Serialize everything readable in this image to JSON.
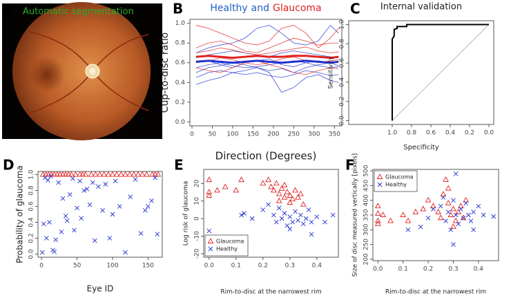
{
  "panel_labels": [
    "A",
    "B",
    "C",
    "D",
    "E",
    "F"
  ],
  "image_panel": {
    "caption": "Automatic segmentation"
  },
  "chart_data": [
    {
      "type": "line",
      "title_parts": [
        {
          "text": "Healthy",
          "color": "#1f5fc4"
        },
        {
          "text": "and",
          "color": "#1f5fc4"
        },
        {
          "text": "Glaucoma",
          "color": "#e02020"
        }
      ],
      "xlabel": "Direction (Degrees)",
      "ylabel": "Cup-to-disc ratio",
      "xlim": [
        -5,
        368
      ],
      "ylim": [
        -0.04,
        1.04
      ],
      "xticks": [
        0,
        50,
        100,
        150,
        200,
        250,
        300,
        350
      ],
      "yticks": [
        {
          "value": 0,
          "label": "0.0"
        },
        0.2,
        0.4,
        0.6,
        0.8,
        {
          "value": 1,
          "label": "1.0"
        }
      ],
      "x": [
        10,
        40,
        70,
        100,
        130,
        160,
        190,
        220,
        250,
        280,
        310,
        340,
        360
      ],
      "series": [
        {
          "color": "#2030d0",
          "values": [
            0.55,
            0.58,
            0.6,
            0.57,
            0.55,
            0.56,
            0.58,
            0.6,
            0.62,
            0.6,
            0.57,
            0.55,
            0.56
          ]
        },
        {
          "color": "#2030d0",
          "values": [
            0.45,
            0.5,
            0.52,
            0.5,
            0.48,
            0.5,
            0.47,
            0.45,
            0.48,
            0.52,
            0.5,
            0.47,
            0.48
          ]
        },
        {
          "color": "#2030d0",
          "values": [
            0.65,
            0.68,
            0.7,
            0.72,
            0.7,
            0.68,
            0.66,
            0.7,
            0.72,
            0.7,
            0.68,
            0.66,
            0.65
          ]
        },
        {
          "color": "#2030d0",
          "values": [
            0.38,
            0.42,
            0.45,
            0.5,
            0.52,
            0.55,
            0.5,
            0.3,
            0.35,
            0.45,
            0.48,
            0.42,
            0.4
          ]
        },
        {
          "color": "#2030d0",
          "values": [
            0.7,
            0.75,
            0.78,
            0.8,
            0.85,
            0.95,
            0.98,
            0.9,
            0.8,
            0.78,
            0.82,
            0.98,
            0.9
          ]
        },
        {
          "color": "#2030d0",
          "values": [
            0.6,
            0.62,
            0.58,
            0.55,
            0.6,
            0.62,
            0.64,
            0.58,
            0.56,
            0.6,
            0.62,
            0.6,
            0.61
          ]
        },
        {
          "color": "#2030d0",
          "values": [
            0.5,
            0.55,
            0.57,
            0.6,
            0.58,
            0.55,
            0.52,
            0.54,
            0.5,
            0.55,
            0.58,
            0.6,
            0.57
          ]
        },
        {
          "color": "#e02020",
          "values": [
            0.7,
            0.72,
            0.75,
            0.73,
            0.7,
            0.68,
            0.7,
            0.72,
            0.74,
            0.76,
            0.72,
            0.7,
            0.71
          ]
        },
        {
          "color": "#e02020",
          "values": [
            0.98,
            0.95,
            0.9,
            0.85,
            0.8,
            0.78,
            0.82,
            0.95,
            0.98,
            0.9,
            0.75,
            0.85,
            0.95
          ]
        },
        {
          "color": "#e02020",
          "values": [
            0.6,
            0.62,
            0.65,
            0.63,
            0.6,
            0.58,
            0.6,
            0.64,
            0.66,
            0.62,
            0.6,
            0.62,
            0.63
          ]
        },
        {
          "color": "#e02020",
          "values": [
            0.75,
            0.8,
            0.82,
            0.78,
            0.72,
            0.7,
            0.75,
            0.8,
            0.85,
            0.82,
            0.78,
            0.8,
            0.8
          ]
        },
        {
          "color": "#e02020",
          "values": [
            0.55,
            0.52,
            0.5,
            0.55,
            0.6,
            0.62,
            0.58,
            0.55,
            0.5,
            0.48,
            0.52,
            0.55,
            0.54
          ]
        },
        {
          "color": "#e02020",
          "line_width": 3,
          "values": [
            0.66,
            0.67,
            0.66,
            0.65,
            0.66,
            0.67,
            0.66,
            0.66,
            0.67,
            0.67,
            0.66,
            0.65,
            0.66
          ]
        },
        {
          "color": "#2030d0",
          "line_width": 3,
          "values": [
            0.61,
            0.62,
            0.61,
            0.6,
            0.61,
            0.62,
            0.61,
            0.6,
            0.61,
            0.62,
            0.61,
            0.6,
            0.61
          ]
        }
      ]
    },
    {
      "type": "line",
      "title": "Internal validation",
      "xlabel": "Specificity",
      "ylabel": "Sensitivity",
      "xlim": [
        1.45,
        -0.05
      ],
      "ylim": [
        -0.04,
        1.04
      ],
      "reference_line": true,
      "xticks": [
        {
          "value": 1,
          "label": "1.0"
        },
        0.8,
        0.6,
        0.4,
        0.2,
        {
          "value": 0,
          "label": "0.0"
        }
      ],
      "yticks": [
        {
          "value": 0,
          "label": "0.0"
        },
        0.2,
        0.4,
        0.6,
        0.8,
        {
          "value": 1,
          "label": "1.0"
        }
      ],
      "x": [
        1,
        1,
        0.98,
        0.98,
        0.95,
        0.95,
        0.85,
        0.85,
        0
      ],
      "series": [
        {
          "color": "#000000",
          "line_width": 2,
          "values": [
            0,
            0.85,
            0.88,
            0.95,
            0.96,
            0.98,
            0.98,
            1,
            1
          ]
        }
      ]
    },
    {
      "type": "scatter",
      "xlabel": "Eye ID",
      "ylabel": "Probability of glaucoma",
      "xlim": [
        -5,
        170
      ],
      "ylim": [
        -0.04,
        1.04
      ],
      "xticks": [
        0,
        50,
        100,
        150
      ],
      "yticks": [
        {
          "value": 0,
          "label": "0.0"
        },
        0.2,
        0.4,
        0.6,
        0.8,
        {
          "value": 1,
          "label": "1.0"
        }
      ],
      "series": [
        {
          "marker": "triangle",
          "color": "#e02020",
          "x": [
            2,
            6,
            10,
            14,
            18,
            22,
            26,
            30,
            34,
            38,
            42,
            48,
            54,
            58,
            62,
            70,
            76,
            82,
            88,
            94,
            100,
            106,
            112,
            118,
            124,
            130,
            136,
            142,
            148,
            156,
            160,
            164
          ],
          "values": [
            1,
            1,
            1,
            1,
            1,
            1,
            1,
            1,
            1,
            1,
            1,
            1,
            1,
            1,
            1,
            1,
            1,
            1,
            1,
            1,
            1,
            1,
            1,
            1,
            1,
            1,
            1,
            1,
            1,
            1,
            1,
            1
          ]
        },
        {
          "marker": "cross",
          "color": "#2030d0",
          "x": [
            1,
            3,
            5,
            7,
            9,
            11,
            13,
            16,
            18,
            20,
            24,
            28,
            30,
            34,
            36,
            40,
            44,
            46,
            50,
            54,
            56,
            60,
            64,
            68,
            72,
            75,
            80,
            86,
            90,
            96,
            100,
            104,
            110,
            118,
            125,
            132,
            140,
            146,
            150,
            155,
            160,
            163
          ],
          "values": [
            0.02,
            0.38,
            0.96,
            0.2,
            0.93,
            0.4,
            0.98,
            0.05,
            0.03,
            0.18,
            0.9,
            0.28,
            0.7,
            0.48,
            0.42,
            0.75,
            0.95,
            0.3,
            0.58,
            0.92,
            0.45,
            0.8,
            0.82,
            0.62,
            0.9,
            0.17,
            0.85,
            0.55,
            0.88,
            0.2,
            0.5,
            0.92,
            0.6,
            0.02,
            0.72,
            0.94,
            0.26,
            0.55,
            0.6,
            0.67,
            0.96,
            0.25
          ]
        }
      ]
    },
    {
      "type": "scatter",
      "xlabel": "Rim-to-disc at the narrowest rim",
      "ylabel": "Log risk of glaucoma",
      "xlim": [
        -0.02,
        0.48
      ],
      "ylim": [
        -22,
        28
      ],
      "legend": "bottom-left",
      "xticks": [
        {
          "value": 0,
          "label": "0.0"
        },
        0.1,
        0.2,
        0.3,
        0.4
      ],
      "yticks": [
        -20,
        -10,
        0,
        10,
        20
      ],
      "series": [
        {
          "name": "Glaucoma",
          "marker": "triangle",
          "color": "#e02020",
          "x": [
            0,
            0,
            0,
            0.03,
            0.06,
            0.1,
            0.12,
            0.2,
            0.22,
            0.23,
            0.24,
            0.25,
            0.26,
            0.27,
            0.28,
            0.29,
            0.3,
            0.31,
            0.32,
            0.33,
            0.35,
            0.34,
            0.28,
            0.3,
            0.26
          ],
          "values": [
            22,
            15,
            13,
            16,
            18,
            16,
            22,
            20,
            22,
            18,
            16,
            20,
            14,
            17,
            12,
            15,
            13,
            11,
            16,
            12,
            8,
            14,
            19,
            9,
            10
          ]
        },
        {
          "name": "Healthy",
          "marker": "cross",
          "color": "#2030d0",
          "x": [
            0.13,
            0.16,
            0.2,
            0.22,
            0.24,
            0.25,
            0.27,
            0.28,
            0.29,
            0.3,
            0.31,
            0.32,
            0.33,
            0.34,
            0.35,
            0.36,
            0.37,
            0.38,
            0.4,
            0.43,
            0.46,
            0.3,
            0.26,
            0,
            0.12,
            0.38
          ],
          "values": [
            3,
            0,
            5,
            8,
            2,
            -2,
            0,
            3,
            -4,
            1,
            -2,
            4,
            -1,
            2,
            -3,
            0,
            5,
            -2,
            1,
            -2,
            2,
            -6,
            6,
            -7,
            2,
            -9
          ]
        }
      ]
    },
    {
      "type": "scatter",
      "xlabel": "Rim-to-disc at the narrowest rim",
      "ylabel": "Size of disc measured vertically [pixels]",
      "xlim": [
        -0.02,
        0.48
      ],
      "ylim": [
        195,
        505
      ],
      "legend": "top-left",
      "xticks": [
        {
          "value": 0,
          "label": "0.0"
        },
        0.1,
        0.2,
        0.3,
        0.4
      ],
      "yticks": [
        200,
        250,
        300,
        350,
        400,
        450,
        500
      ],
      "series": [
        {
          "name": "Glaucoma",
          "marker": "triangle",
          "color": "#e02020",
          "x": [
            0,
            0,
            0,
            0,
            0.02,
            0.05,
            0.1,
            0.12,
            0.15,
            0.18,
            0.2,
            0.22,
            0.24,
            0.25,
            0.26,
            0.27,
            0.28,
            0.29,
            0.3,
            0.31,
            0.32,
            0.33,
            0.34,
            0.35,
            0.28,
            0.3
          ],
          "values": [
            380,
            355,
            330,
            320,
            350,
            330,
            350,
            330,
            360,
            370,
            400,
            380,
            360,
            340,
            420,
            470,
            390,
            350,
            370,
            330,
            360,
            380,
            340,
            400,
            440,
            310
          ]
        },
        {
          "name": "Healthy",
          "marker": "cross",
          "color": "#2030d0",
          "x": [
            0.12,
            0.17,
            0.2,
            0.22,
            0.25,
            0.27,
            0.28,
            0.29,
            0.3,
            0.31,
            0.31,
            0.32,
            0.33,
            0.34,
            0.35,
            0.36,
            0.37,
            0.38,
            0.4,
            0.42,
            0.46,
            0.3,
            0.26,
            0.38
          ],
          "values": [
            300,
            310,
            340,
            370,
            380,
            330,
            360,
            300,
            400,
            490,
            350,
            320,
            370,
            340,
            390,
            350,
            330,
            360,
            380,
            350,
            345,
            250,
            410,
            300
          ]
        }
      ]
    }
  ]
}
